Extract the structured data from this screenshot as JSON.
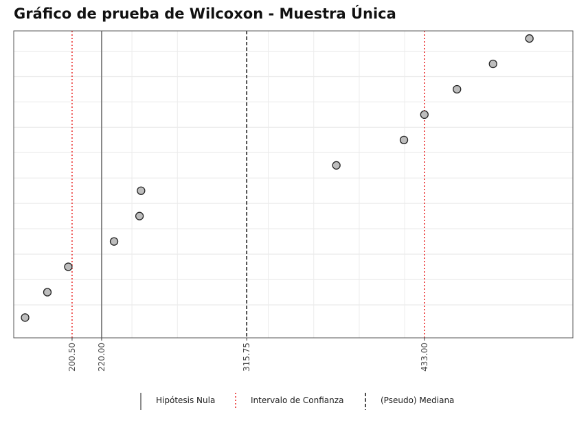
{
  "chart_data": {
    "type": "scatter",
    "title": "Gráfico de prueba de Wilcoxon - Muestra Única",
    "xlabel": "",
    "ylabel": "",
    "xlim": [
      162,
      531
    ],
    "ylim": [
      0.2,
      12.3
    ],
    "grid": true,
    "x_minor_grid": [
      240,
      270,
      330,
      360,
      390,
      420
    ],
    "x_ticks": [
      200.5,
      220.0,
      315.75,
      433.0
    ],
    "x_tick_labels": [
      "200.50",
      "220.00",
      "315.75",
      "433.00"
    ],
    "points": [
      {
        "x": 169.5,
        "y": 1
      },
      {
        "x": 184.2,
        "y": 2
      },
      {
        "x": 198.0,
        "y": 3
      },
      {
        "x": 228.2,
        "y": 4
      },
      {
        "x": 245.0,
        "y": 5
      },
      {
        "x": 246.0,
        "y": 6
      },
      {
        "x": 374.9,
        "y": 7
      },
      {
        "x": 419.5,
        "y": 8
      },
      {
        "x": 433.0,
        "y": 9
      },
      {
        "x": 454.5,
        "y": 10
      },
      {
        "x": 478.3,
        "y": 11
      },
      {
        "x": 502.3,
        "y": 12
      }
    ],
    "reference_lines": [
      {
        "name": "Hipótesis Nula",
        "x": 220.0,
        "style": "solid",
        "color": "#7f7f7f"
      },
      {
        "name": "Intervalo de Confianza",
        "x": 200.5,
        "style": "dotted",
        "color": "#e8201f"
      },
      {
        "name": "Intervalo de Confianza",
        "x": 433.0,
        "style": "dotted",
        "color": "#e8201f"
      },
      {
        "name": "(Pseudo) Mediana",
        "x": 315.75,
        "style": "dashed",
        "color": "#111111"
      }
    ],
    "legend": {
      "placement": "bottom",
      "items": [
        {
          "label": "Hipótesis Nula",
          "style": "solid",
          "color": "#7f7f7f"
        },
        {
          "label": "Intervalo de Confianza",
          "style": "dotted",
          "color": "#e8201f"
        },
        {
          "label": "(Pseudo) Mediana",
          "style": "dashed",
          "color": "#111111"
        }
      ]
    },
    "colors": {
      "point_fill": "#bdbdbd",
      "point_stroke": "#222222",
      "grid": "#ebebeb",
      "panel_border": "#555555"
    }
  }
}
